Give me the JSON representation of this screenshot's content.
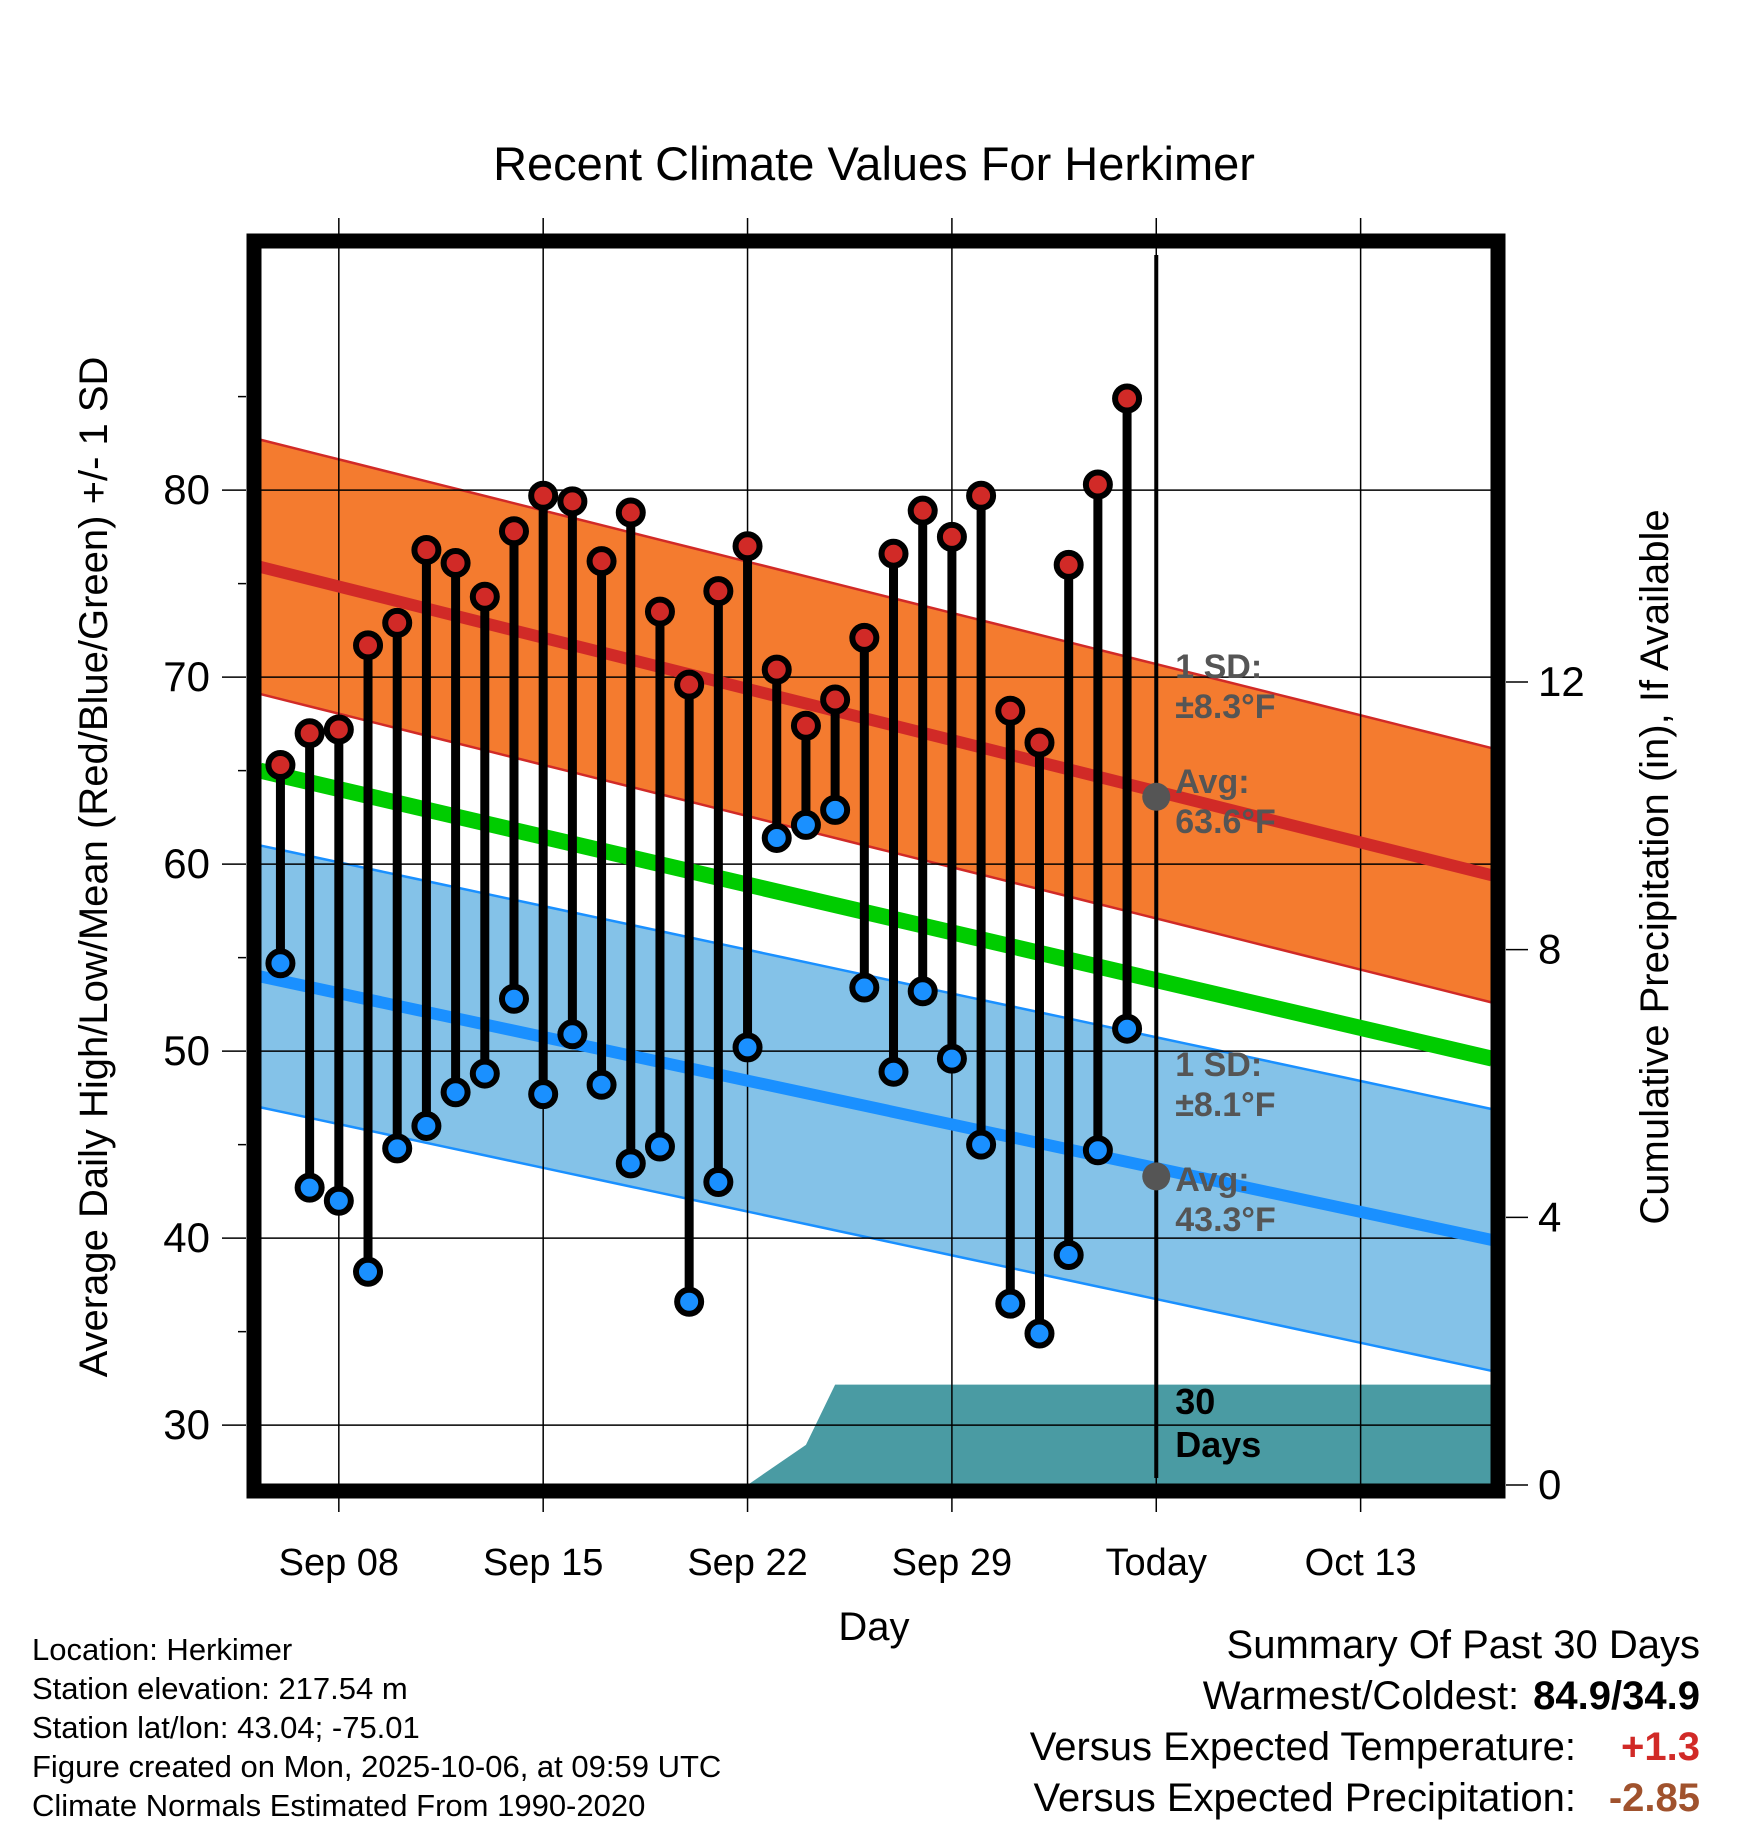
{
  "chart_data": {
    "type": "line",
    "title": "Recent Climate Values For Herkimer",
    "xlabel": "Day",
    "ylabel": "Average Daily High/Low/Mean (Red/Blue/Green) +/- 1 SD",
    "y2label": "Cumulative Precipitation (in), If Available",
    "ylim": [
      26.8,
      93.0
    ],
    "y2lim": [
      0,
      18.5
    ],
    "xlim": [
      -0.7,
      41.5
    ],
    "yticks": [
      30,
      40,
      50,
      60,
      70,
      80
    ],
    "y2ticks": [
      0,
      4,
      8,
      12
    ],
    "xticks": [
      {
        "day": 2,
        "label": "Sep 08"
      },
      {
        "day": 9,
        "label": "Sep 15"
      },
      {
        "day": 16,
        "label": "Sep 22"
      },
      {
        "day": 23,
        "label": "Sep 29"
      },
      {
        "day": 30,
        "label": "Today"
      },
      {
        "day": 37,
        "label": "Oct 13"
      }
    ],
    "today_day": 30,
    "days": [
      0,
      1,
      2,
      3,
      4,
      5,
      6,
      7,
      8,
      9,
      10,
      11,
      12,
      13,
      14,
      15,
      16,
      17,
      18,
      19,
      20,
      21,
      22,
      23,
      24,
      25,
      26,
      27,
      28,
      29
    ],
    "daily_high": [
      65.3,
      67.0,
      67.2,
      71.7,
      72.9,
      76.8,
      76.1,
      74.3,
      77.8,
      79.7,
      79.4,
      76.2,
      78.8,
      73.5,
      69.6,
      74.6,
      77.0,
      70.4,
      67.4,
      68.8,
      72.1,
      76.6,
      78.9,
      77.5,
      79.7,
      68.2,
      66.5,
      76.0,
      80.3,
      84.9
    ],
    "daily_low": [
      54.7,
      42.7,
      42.0,
      38.2,
      44.8,
      46.0,
      47.8,
      48.8,
      52.8,
      47.7,
      50.9,
      48.2,
      44.0,
      44.9,
      36.6,
      43.0,
      50.2,
      61.4,
      62.1,
      62.9,
      53.4,
      48.9,
      53.2,
      49.6,
      45.0,
      36.5,
      34.9,
      39.1,
      44.7,
      51.2
    ],
    "normal_high": {
      "days": [
        -0.7,
        41.5
      ],
      "values": [
        75.9,
        59.4
      ],
      "sd": 6.8
    },
    "normal_low": {
      "days": [
        -0.7,
        41.5
      ],
      "values": [
        54.0,
        39.9
      ],
      "sd": 7.0
    },
    "normal_mean": {
      "days": [
        -0.7,
        41.5
      ],
      "values": [
        65.0,
        49.6
      ]
    },
    "precip_cumulative": {
      "days": [
        -0.7,
        16,
        18,
        19,
        41.5
      ],
      "values": [
        0,
        0,
        0.6,
        1.5,
        1.5
      ]
    },
    "annotations": {
      "high_sd_label": "1 SD:",
      "high_sd_value": "±8.3°F",
      "high_avg_label": "Avg:",
      "high_avg_value": "63.6°F",
      "high_avg": 63.6,
      "low_sd_label": "1 SD:",
      "low_sd_value": "±8.1°F",
      "low_avg_label": "Avg:",
      "low_avg_value": "43.3°F",
      "low_avg": 43.3,
      "days_label_1": "30",
      "days_label_2": "Days"
    },
    "colors": {
      "high_band": "#f47b2f",
      "high_line": "#d12a27",
      "low_band": "#84c2e8",
      "low_line": "#1a90ff",
      "mean_line": "#00cc00",
      "precip": "#4a9ba3",
      "high_marker": "#d12a27",
      "low_marker": "#1a90ff",
      "annotation_text": "#555555"
    }
  },
  "footer": {
    "location": "Location: Herkimer",
    "elevation": "Station elevation: 217.54 m",
    "latlon": "Station lat/lon: 43.04; -75.01",
    "created": "Figure created on Mon, 2025-10-06, at 09:59 UTC",
    "normals": "Climate Normals Estimated From 1990-2020"
  },
  "summary": {
    "title": "Summary Of Past 30 Days",
    "warm_cold_label": "Warmest/Coldest:",
    "warm_cold_value": "84.9/34.9",
    "temp_label": "Versus Expected Temperature:",
    "temp_value": "+1.3",
    "temp_color": "#d12a27",
    "precip_label": "Versus Expected Precipitation:",
    "precip_value": "-2.85",
    "precip_color": "#a0522d"
  }
}
